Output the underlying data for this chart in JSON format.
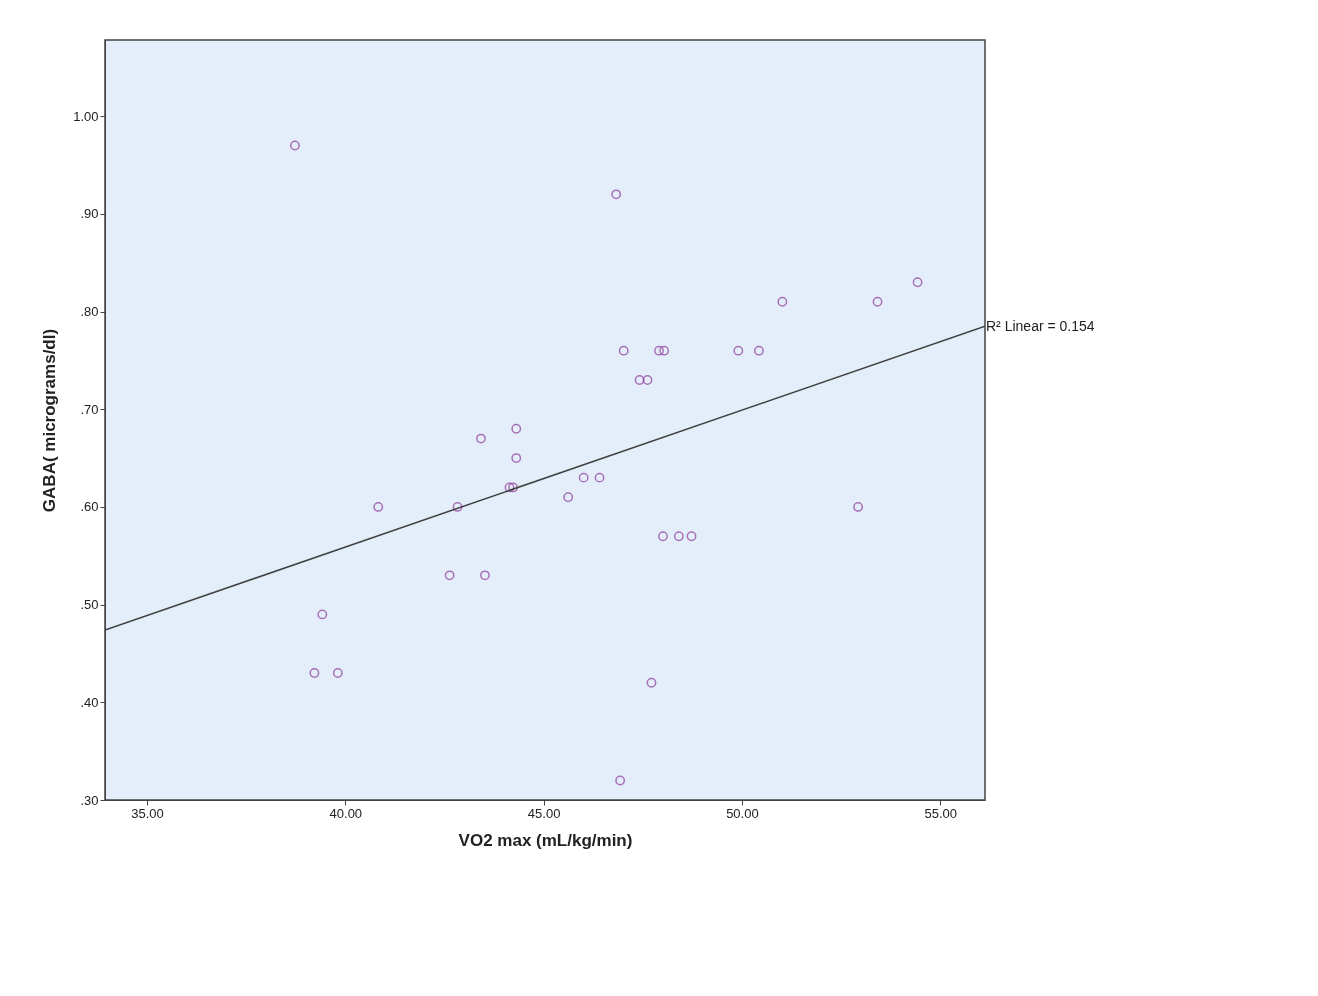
{
  "chart_data": {
    "type": "scatter",
    "xlabel": "VO2 max (mL/kg/min)",
    "ylabel": "GABA( micrograms/dl)",
    "xlim": [
      33.94,
      56.13
    ],
    "ylim": [
      0.3,
      1.078
    ],
    "xticks": [
      {
        "value": 35,
        "label": "35.00"
      },
      {
        "value": 40,
        "label": "40.00"
      },
      {
        "value": 45,
        "label": "45.00"
      },
      {
        "value": 50,
        "label": "50.00"
      },
      {
        "value": 55,
        "label": "55.00"
      }
    ],
    "yticks": [
      {
        "value": 0.3,
        "label": ".30"
      },
      {
        "value": 0.4,
        "label": ".40"
      },
      {
        "value": 0.5,
        "label": ".50"
      },
      {
        "value": 0.6,
        "label": ".60"
      },
      {
        "value": 0.7,
        "label": ".70"
      },
      {
        "value": 0.8,
        "label": ".80"
      },
      {
        "value": 0.9,
        "label": ".90"
      },
      {
        "value": 1.0,
        "label": "1.00"
      }
    ],
    "grid": false,
    "marker": "circle",
    "series": [
      {
        "color": "#8e3c9a",
        "x": [
          38.73,
          46.83,
          54.43,
          51.02,
          53.42,
          47.02,
          47.91,
          48.04,
          49.91,
          50.43,
          47.42,
          47.62,
          43.42,
          44.31,
          44.31,
          40.83,
          42.83,
          44.14,
          44.23,
          45.62,
          46.01,
          46.41,
          52.93,
          48.01,
          48.41,
          48.73,
          42.63,
          43.52,
          39.42,
          39.22,
          39.81,
          47.72,
          46.93
        ],
        "values": [
          0.97,
          0.92,
          0.83,
          0.81,
          0.81,
          0.76,
          0.76,
          0.76,
          0.76,
          0.76,
          0.73,
          0.73,
          0.67,
          0.68,
          0.65,
          0.6,
          0.6,
          0.62,
          0.62,
          0.61,
          0.63,
          0.63,
          0.6,
          0.57,
          0.57,
          0.57,
          0.53,
          0.53,
          0.49,
          0.43,
          0.43,
          0.42,
          0.32
        ]
      },
      {
        "type": "line",
        "marker": "none",
        "color": "#404040",
        "x": [
          33.94,
          56.13
        ],
        "values": [
          0.474,
          0.785
        ]
      }
    ],
    "annotations": [
      {
        "text": "R² Linear = 0.154",
        "x": 56.13,
        "y": 0.785
      }
    ]
  }
}
